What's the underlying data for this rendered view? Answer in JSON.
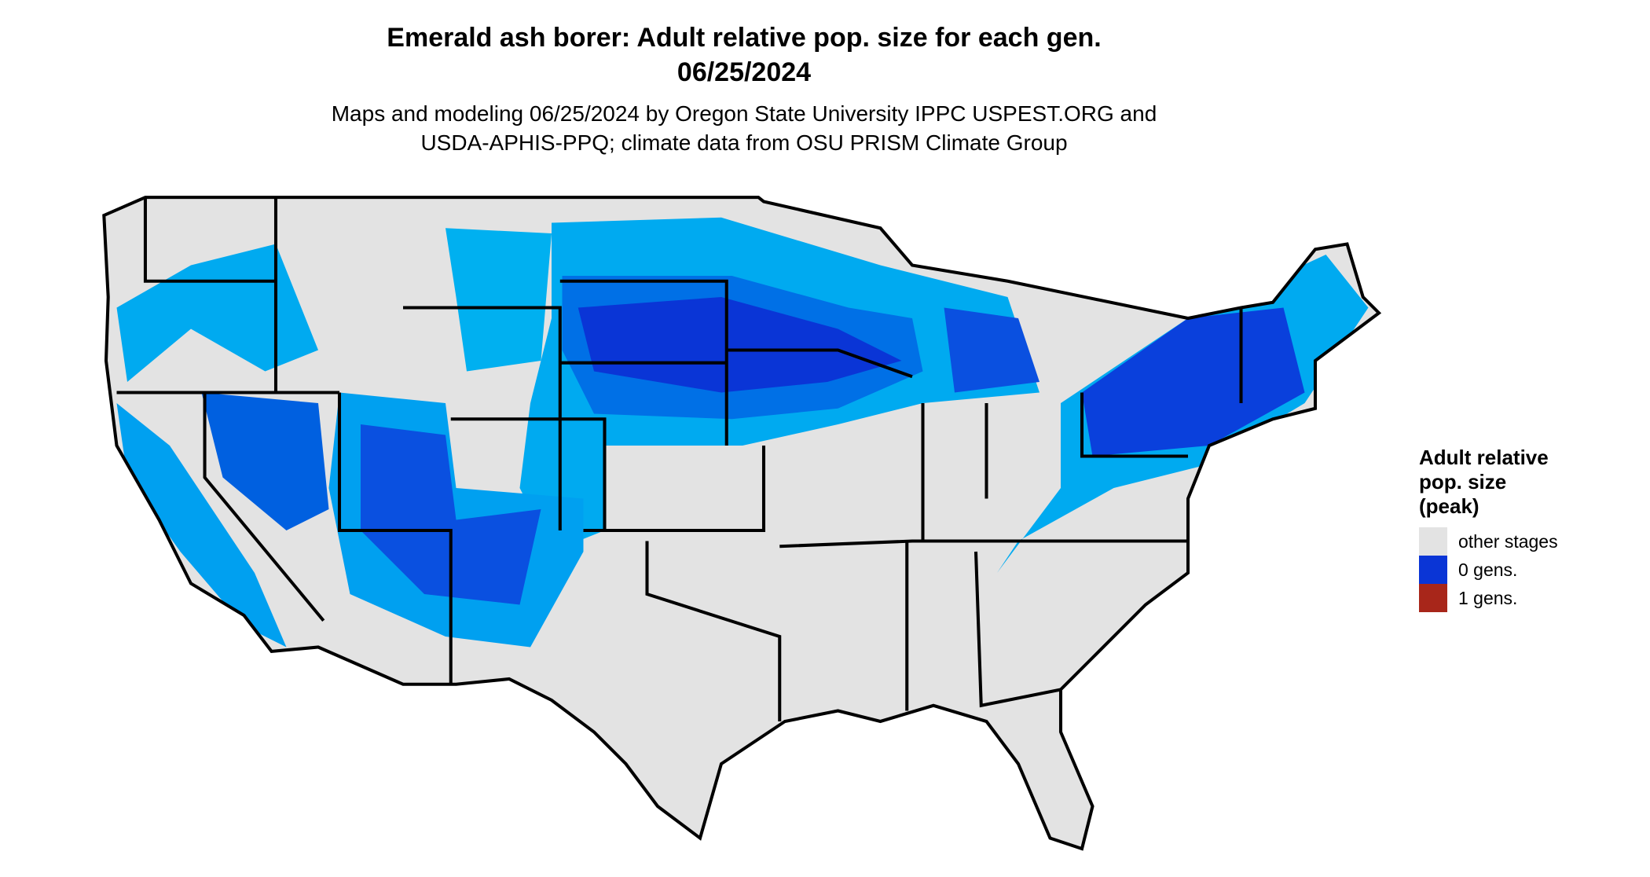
{
  "header": {
    "title": [
      "Emerald ash borer: Adult relative pop. size for each gen.",
      "06/25/2024"
    ],
    "subtitle": [
      "Maps and modeling 06/25/2024 by Oregon State University IPPC USPEST.ORG and",
      "USDA-APHIS-PPQ; climate data from OSU PRISM Climate Group"
    ]
  },
  "legend": {
    "title": [
      "Adult relative",
      "pop. size",
      "(peak)"
    ],
    "items": [
      {
        "label": "other stages",
        "color": "#e3e3e3"
      },
      {
        "label": "0 gens.",
        "color": "#0a35d6"
      },
      {
        "label": "1 gens.",
        "color": "#a8261a"
      }
    ]
  }
}
